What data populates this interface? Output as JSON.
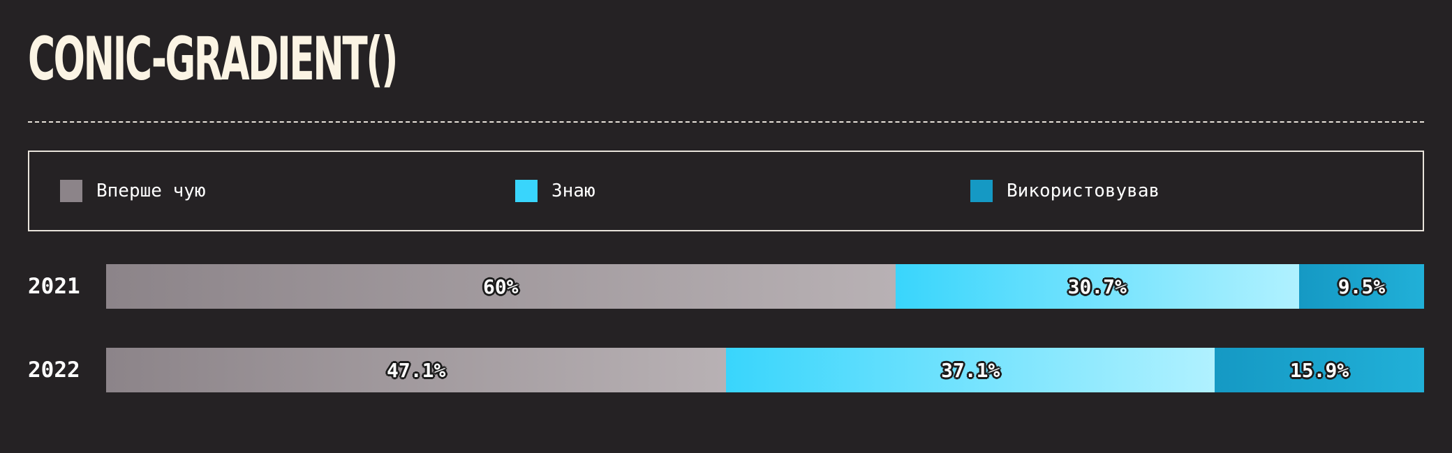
{
  "title": "CONIC-GRADIENT()",
  "colors": {
    "background": "#252224",
    "text": "#fbf4e4",
    "first_time_start": "#8c8489",
    "first_time_end": "#b8b1b4",
    "know_start": "#39d5fc",
    "know_end": "#b0f1ff",
    "used_start": "#1599c4",
    "used_end": "#21b0d8"
  },
  "legend": [
    {
      "label": "Вперше чую",
      "color": "#8c8489"
    },
    {
      "label": "Знаю",
      "color": "#39d5fc"
    },
    {
      "label": "Використовував",
      "color": "#1599c4"
    }
  ],
  "chart_data": {
    "type": "bar",
    "orientation": "horizontal",
    "stacked": true,
    "percent": true,
    "categories": [
      "2021",
      "2022"
    ],
    "series": [
      {
        "name": "Вперше чую",
        "values": [
          60,
          47.1
        ],
        "labels": [
          "60%",
          "47.1%"
        ]
      },
      {
        "name": "Знаю",
        "values": [
          30.7,
          37.1
        ],
        "labels": [
          "30.7%",
          "37.1%"
        ]
      },
      {
        "name": "Використовував",
        "values": [
          9.5,
          15.9
        ],
        "labels": [
          "9.5%",
          "15.9%"
        ]
      }
    ],
    "legend_position": "top",
    "grid": false
  }
}
